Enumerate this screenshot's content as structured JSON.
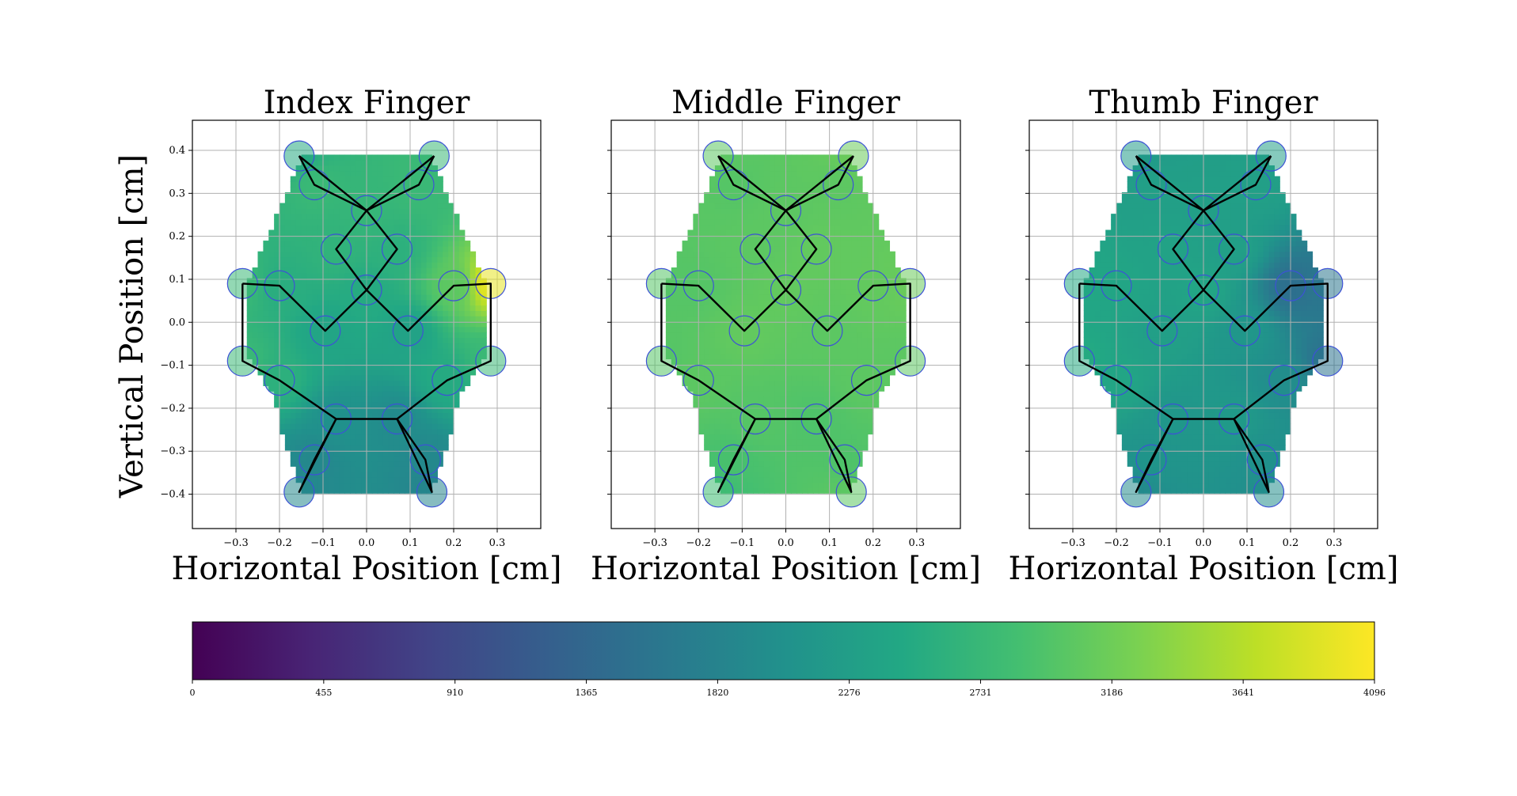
{
  "chart_data": {
    "type": "heatmap",
    "colormap": "viridis",
    "colorbar": {
      "range": [
        0,
        4096
      ],
      "ticks": [
        "0",
        "455",
        "910",
        "1365",
        "1820",
        "2276",
        "2731",
        "3186",
        "3641",
        "4096"
      ],
      "placement": "bottom"
    },
    "ylabel": "Vertical Position [cm]",
    "grid": true,
    "xlim": [
      -0.4,
      0.4
    ],
    "ylim": [
      -0.48,
      0.47
    ],
    "xticks": [
      "−0.3",
      "−0.2",
      "−0.1",
      "0.0",
      "0.1",
      "0.2",
      "0.3"
    ],
    "yticks": [
      "−0.4",
      "−0.3",
      "−0.2",
      "−0.1",
      "0.0",
      "0.1",
      "0.2",
      "0.3",
      "0.4"
    ],
    "sensor_positions": [
      [
        -0.155,
        0.387
      ],
      [
        0.155,
        0.387
      ],
      [
        -0.12,
        0.32
      ],
      [
        0.12,
        0.32
      ],
      [
        0.0,
        0.26
      ],
      [
        -0.07,
        0.17
      ],
      [
        0.07,
        0.17
      ],
      [
        -0.285,
        0.09
      ],
      [
        -0.2,
        0.085
      ],
      [
        0.0,
        0.075
      ],
      [
        0.2,
        0.085
      ],
      [
        0.285,
        0.09
      ],
      [
        -0.095,
        -0.02
      ],
      [
        0.095,
        -0.02
      ],
      [
        -0.285,
        -0.09
      ],
      [
        -0.2,
        -0.135
      ],
      [
        0.185,
        -0.135
      ],
      [
        0.285,
        -0.09
      ],
      [
        -0.07,
        -0.225
      ],
      [
        0.07,
        -0.225
      ],
      [
        -0.12,
        -0.32
      ],
      [
        0.135,
        -0.32
      ],
      [
        -0.155,
        -0.395
      ],
      [
        0.15,
        -0.395
      ]
    ],
    "panels": [
      {
        "title": "Index Finger",
        "xlabel": "Horizontal Position [cm]",
        "sensor_values": [
          2500,
          2750,
          2750,
          2750,
          2700,
          2650,
          2600,
          2750,
          2550,
          2500,
          3050,
          3950,
          2400,
          2350,
          2750,
          2600,
          2500,
          2750,
          2050,
          1950,
          1900,
          1900,
          1900,
          1850
        ]
      },
      {
        "title": "Middle Finger",
        "xlabel": "Horizontal Position [cm]",
        "sensor_values": [
          3050,
          3150,
          3000,
          3050,
          3050,
          3050,
          3100,
          3000,
          3000,
          3100,
          3100,
          3150,
          3100,
          3050,
          3000,
          3050,
          3050,
          3050,
          3000,
          2950,
          2900,
          2950,
          2800,
          3050
        ]
      },
      {
        "title": "Thumb Finger",
        "xlabel": "Horizontal Position [cm]",
        "sensor_values": [
          2200,
          2300,
          2300,
          2300,
          2300,
          2350,
          2300,
          2450,
          2400,
          2400,
          1500,
          1600,
          2300,
          2150,
          2500,
          2400,
          2000,
          1550,
          2150,
          2200,
          2100,
          2050,
          1950,
          2000
        ]
      }
    ]
  }
}
